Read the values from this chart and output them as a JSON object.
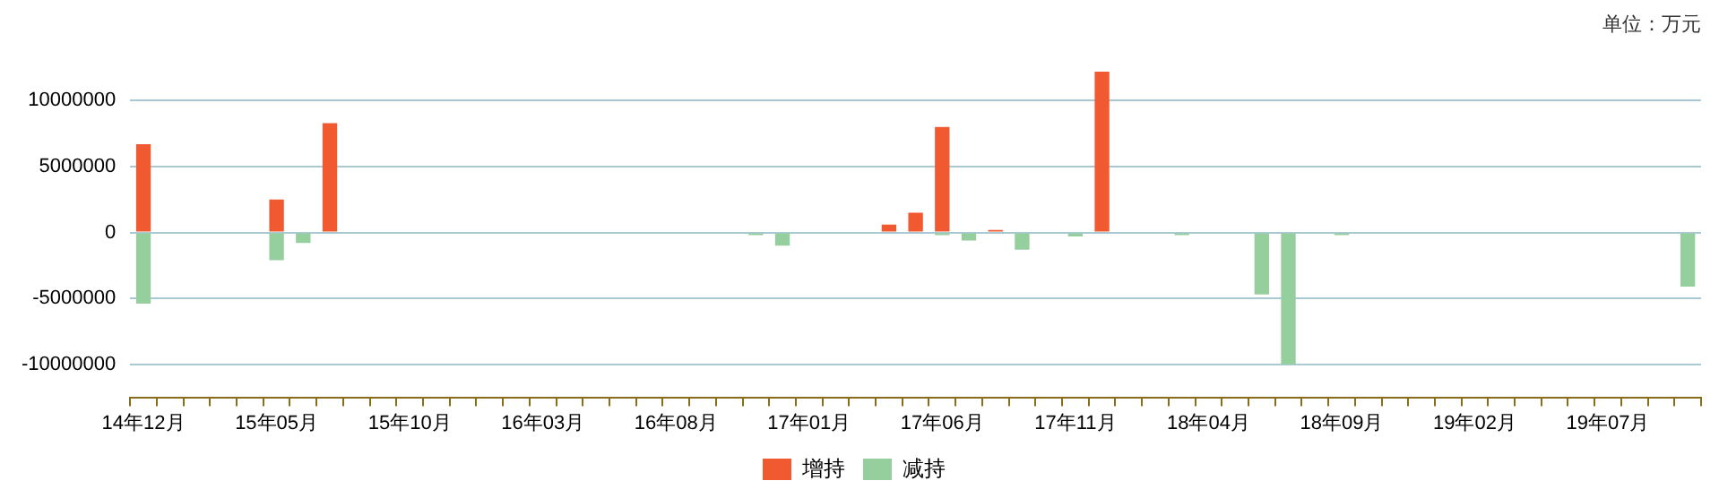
{
  "chart_data": {
    "type": "bar",
    "stacked": true,
    "annotations": [
      "单位：万元"
    ],
    "categories": [
      "14年12月",
      null,
      null,
      null,
      null,
      "15年05月",
      null,
      null,
      null,
      null,
      "15年10月",
      null,
      null,
      null,
      null,
      "16年03月",
      null,
      null,
      null,
      null,
      "16年08月",
      null,
      null,
      null,
      null,
      "17年01月",
      null,
      null,
      null,
      null,
      "17年06月",
      null,
      null,
      null,
      null,
      "17年11月",
      null,
      null,
      null,
      null,
      "18年04月",
      null,
      null,
      null,
      null,
      "18年09月",
      null,
      null,
      null,
      null,
      "19年02月",
      null,
      null,
      null,
      null,
      "19年07月",
      null,
      null,
      null
    ],
    "series": [
      {
        "name": "增持",
        "color": "#f15a30",
        "values": [
          6700000,
          null,
          null,
          null,
          null,
          2500000,
          null,
          8300000,
          null,
          null,
          null,
          null,
          null,
          null,
          null,
          null,
          null,
          null,
          null,
          null,
          null,
          null,
          null,
          null,
          null,
          null,
          null,
          null,
          600000,
          1500000,
          8000000,
          null,
          200000,
          null,
          null,
          null,
          12200000,
          null,
          null,
          null,
          null,
          null,
          null,
          null,
          null,
          null,
          null,
          null,
          null,
          null,
          null,
          null,
          null,
          null,
          null,
          null,
          null,
          null,
          null
        ]
      },
      {
        "name": "减持",
        "color": "#96cf9e",
        "values": [
          -5400000,
          null,
          null,
          null,
          null,
          -2100000,
          -800000,
          null,
          null,
          null,
          null,
          null,
          null,
          null,
          null,
          null,
          null,
          null,
          null,
          null,
          null,
          null,
          null,
          -200000,
          -1000000,
          null,
          null,
          null,
          null,
          null,
          -200000,
          -600000,
          null,
          -1300000,
          null,
          -300000,
          null,
          null,
          null,
          -200000,
          null,
          null,
          -4700000,
          -10000000,
          null,
          -200000,
          null,
          null,
          null,
          null,
          null,
          null,
          null,
          null,
          null,
          null,
          null,
          null,
          -4100000
        ]
      }
    ],
    "ylim": [
      -12500000,
      12200000
    ],
    "yticks": [
      -10000000,
      -5000000,
      0,
      5000000,
      10000000
    ],
    "grid": "y",
    "legend": "bottom"
  }
}
